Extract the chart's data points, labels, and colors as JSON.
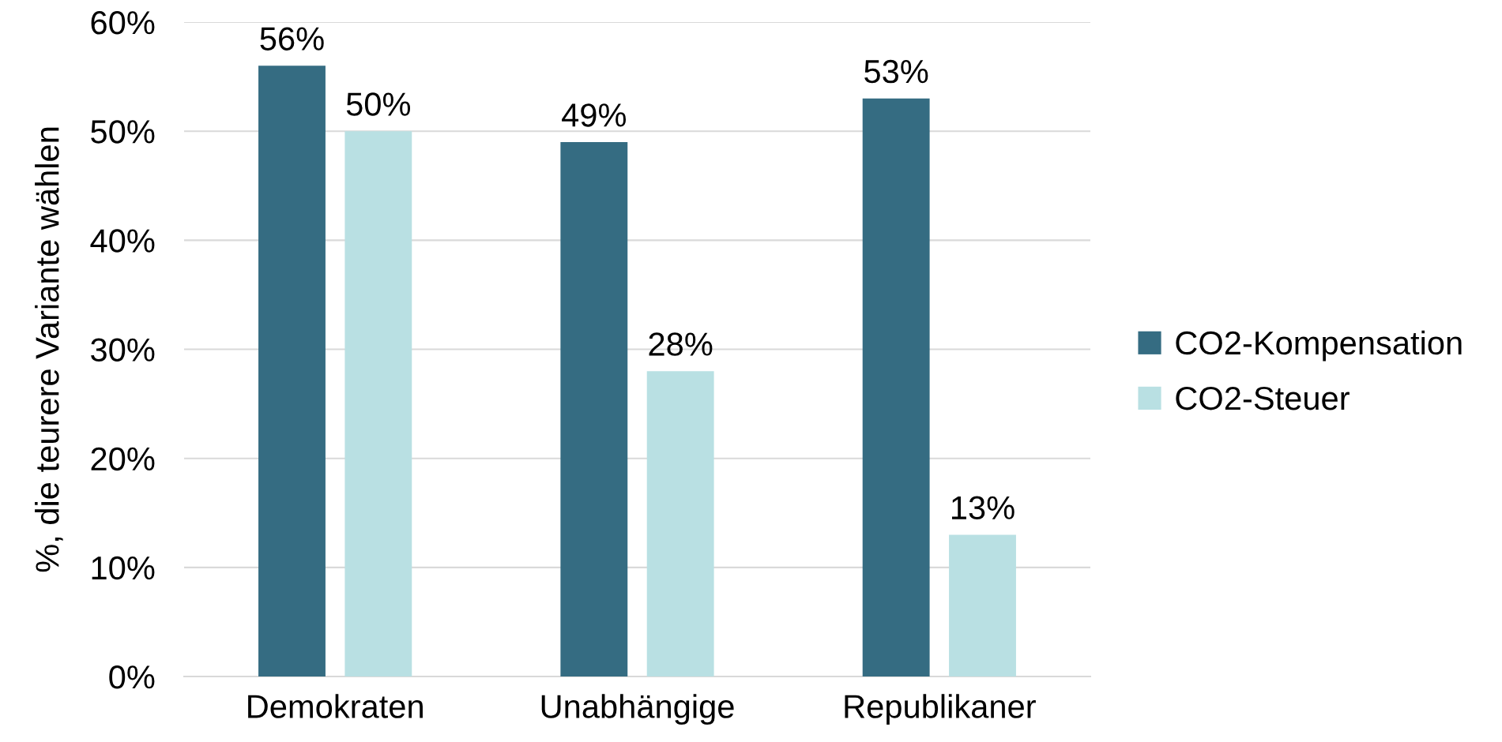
{
  "chart_data": {
    "type": "bar",
    "ylabel": "%, die teurere Variante wählen",
    "categories": [
      "Demokraten",
      "Unabhängige",
      "Republikaner"
    ],
    "series": [
      {
        "name": "CO2-Kompensation",
        "color": "#356c82",
        "values": [
          56,
          49,
          53
        ],
        "value_labels": [
          "56%",
          "49%",
          "53%"
        ]
      },
      {
        "name": "CO2-Steuer",
        "color": "#b9e0e3",
        "values": [
          50,
          28,
          13
        ],
        "value_labels": [
          "50%",
          "28%",
          "13%"
        ]
      }
    ],
    "ylim": [
      0,
      60
    ],
    "yticks": [
      {
        "value": 0,
        "label": "0%"
      },
      {
        "value": 10,
        "label": "10%"
      },
      {
        "value": 20,
        "label": "20%"
      },
      {
        "value": 30,
        "label": "30%"
      },
      {
        "value": 40,
        "label": "40%"
      },
      {
        "value": 50,
        "label": "50%"
      },
      {
        "value": 60,
        "label": "60%"
      }
    ],
    "grid": "y",
    "legend": "right"
  }
}
